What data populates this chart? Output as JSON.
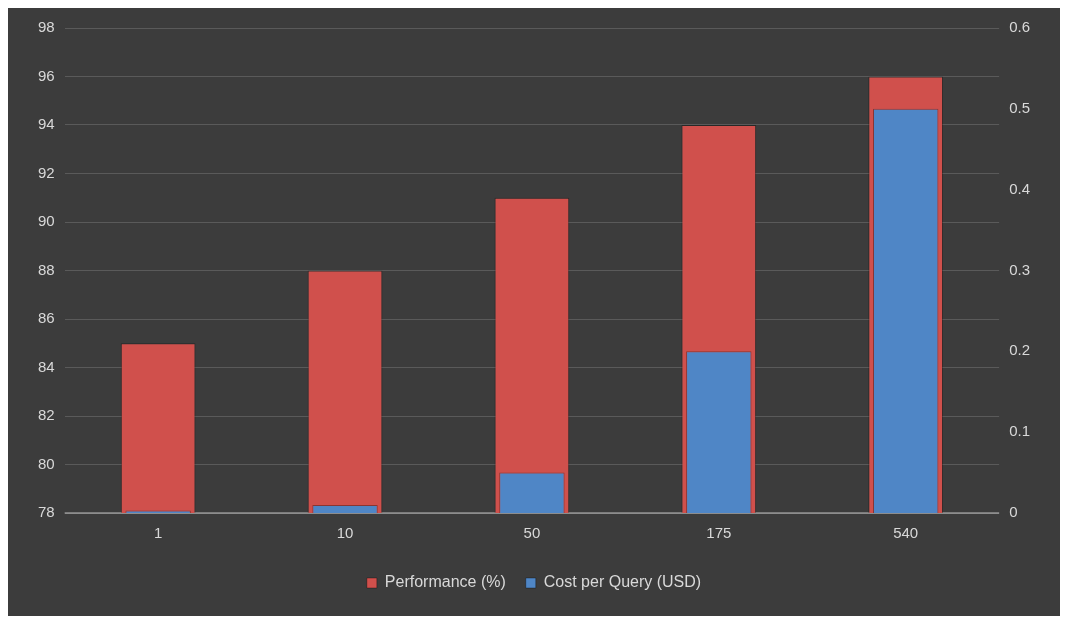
{
  "chart_data": {
    "type": "bar",
    "categories": [
      "1",
      "10",
      "50",
      "175",
      "540"
    ],
    "series": [
      {
        "name": "Performance (%)",
        "color": "#d0504c",
        "values": [
          85,
          88,
          91,
          94,
          96
        ]
      },
      {
        "name": "Cost per Query (USD)",
        "color": "#4f86c6",
        "values": [
          0.003,
          0.01,
          0.05,
          0.2,
          0.5
        ],
        "axis": "y2"
      }
    ],
    "ylim": [
      78,
      98
    ],
    "yticks": [
      78,
      80,
      82,
      84,
      86,
      88,
      90,
      92,
      94,
      96,
      98
    ],
    "y2lim": [
      0,
      0.6
    ],
    "y2ticks": [
      0,
      0.1,
      0.2,
      0.3,
      0.4,
      0.5,
      0.6
    ],
    "grid": "y",
    "legend": "bottom"
  }
}
